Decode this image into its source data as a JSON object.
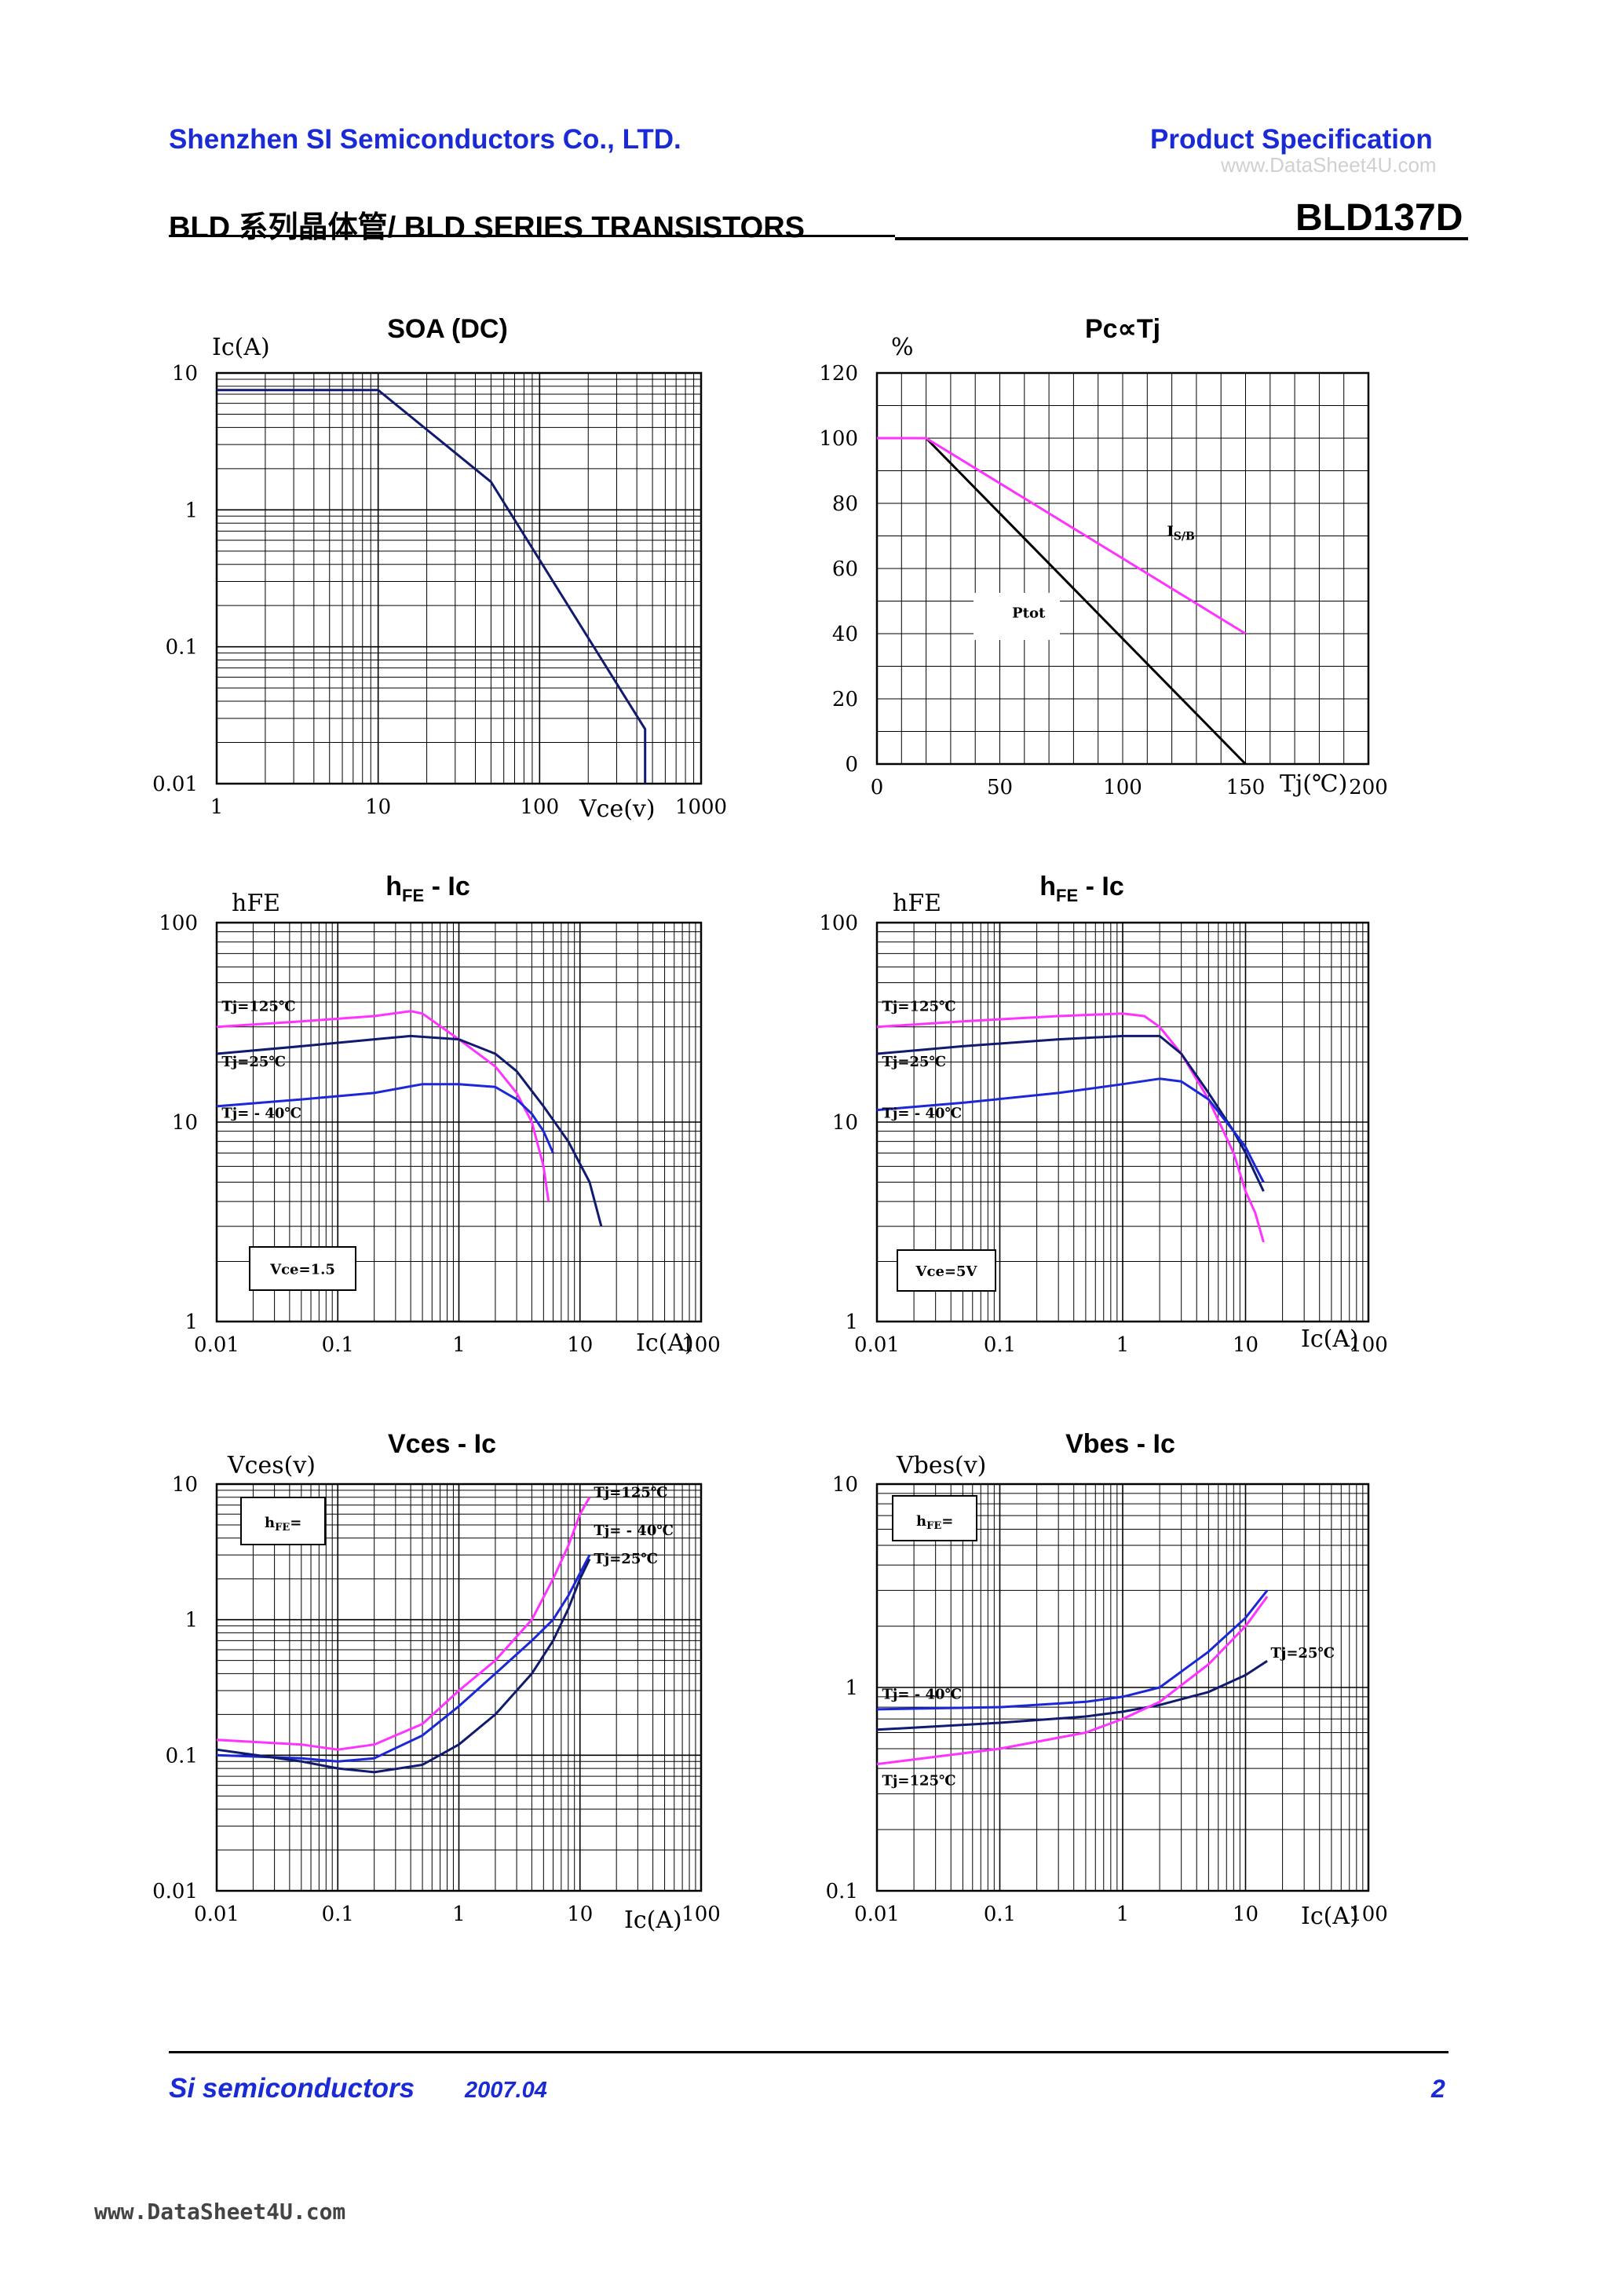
{
  "header": {
    "company": "Shenzhen SI Semiconductors Co., LTD.",
    "spec": "Product Specification",
    "watermark": "www.DataSheet4U.com",
    "series": "BLD 系列晶体管/ BLD SERIES TRANSISTORS",
    "part": "BLD137D"
  },
  "footer": {
    "company": "Si semiconductors",
    "date": "2007.04",
    "page": "2",
    "website": "www.DataSheet4U.com"
  },
  "colors": {
    "magenta": "#ff33ff",
    "navy": "#101a6e",
    "blue": "#1c28d8",
    "black": "#000000",
    "header_blue": "#1a2bd6"
  },
  "chart_data": [
    {
      "id": "soa",
      "type": "line",
      "title": "SOA (DC)",
      "xlabel": "Vce(v)",
      "ylabel": "Ic(A)",
      "xscale": "log",
      "yscale": "log",
      "xlim": [
        1,
        1000
      ],
      "ylim": [
        0.01,
        10
      ],
      "xticks": [
        1,
        10,
        100,
        1000
      ],
      "xtick_labels": [
        "1",
        "10",
        "100",
        "1000"
      ],
      "yticks": [
        0.01,
        0.1,
        1,
        10
      ],
      "ytick_labels": [
        "0.01",
        "0.1",
        "1",
        "10"
      ],
      "series": [
        {
          "name": "SOA",
          "color": "navy",
          "x": [
            1,
            10,
            50,
            450,
            450
          ],
          "y": [
            7.5,
            7.5,
            1.6,
            0.025,
            0.01
          ]
        }
      ]
    },
    {
      "id": "pc_tj",
      "type": "line",
      "title": "Pc∝Tj",
      "xlabel": "Tj(℃)",
      "ylabel": "%",
      "xscale": "linear",
      "yscale": "linear",
      "xlim": [
        0,
        200
      ],
      "ylim": [
        0,
        120
      ],
      "xticks": [
        0,
        50,
        100,
        150,
        200
      ],
      "xtick_labels": [
        "0",
        "50",
        "100",
        "150",
        "200"
      ],
      "yticks": [
        0,
        20,
        40,
        60,
        80,
        100,
        120
      ],
      "ytick_labels": [
        "0",
        "20",
        "40",
        "60",
        "80",
        "100",
        "120"
      ],
      "series": [
        {
          "name": "Ptot",
          "color": "black",
          "x": [
            0,
            20,
            150
          ],
          "y": [
            100,
            100,
            0
          ]
        },
        {
          "name": "Is/b",
          "color": "magenta",
          "x": [
            0,
            20,
            150
          ],
          "y": [
            100,
            100,
            40
          ]
        }
      ],
      "annotations": [
        {
          "text": "Is/b",
          "main": "I",
          "sub": "S/B",
          "x": 118,
          "y": 70
        },
        {
          "text": "Ptot",
          "x": 55,
          "y": 45
        }
      ]
    },
    {
      "id": "hfe_ic_1",
      "type": "line",
      "title": "hFE - Ic",
      "xlabel": "Ic(A)",
      "ylabel": "hFE",
      "xscale": "log",
      "yscale": "log",
      "xlim": [
        0.01,
        100
      ],
      "ylim": [
        1,
        100
      ],
      "xticks": [
        0.01,
        0.1,
        1,
        10,
        100
      ],
      "xtick_labels": [
        "0.01",
        "0.1",
        "1",
        "10",
        "100"
      ],
      "yticks": [
        1,
        10,
        100
      ],
      "ytick_labels": [
        "1",
        "10",
        "100"
      ],
      "series": [
        {
          "name": "Tj=125℃",
          "color": "magenta",
          "x": [
            0.01,
            0.05,
            0.2,
            0.4,
            0.5,
            1,
            2,
            3,
            4,
            5,
            5.5
          ],
          "y": [
            30,
            32,
            34,
            36,
            35,
            26,
            19,
            14,
            10,
            6,
            4
          ]
        },
        {
          "name": "Tj=25℃",
          "color": "navy",
          "x": [
            0.01,
            0.05,
            0.2,
            0.4,
            1,
            2,
            3,
            5,
            8,
            12,
            15
          ],
          "y": [
            22,
            24,
            26,
            27,
            26,
            22,
            18,
            12,
            8,
            5,
            3
          ]
        },
        {
          "name": "Tj=-40℃",
          "color": "blue",
          "x": [
            0.01,
            0.05,
            0.2,
            0.5,
            1,
            2,
            3,
            4,
            5,
            6
          ],
          "y": [
            12,
            13,
            14,
            15.5,
            15.5,
            15,
            13,
            11,
            9,
            7
          ]
        }
      ],
      "annotations": [
        {
          "text": "Tj=125℃",
          "x": 0.011,
          "y": 36
        },
        {
          "text": "Tj=25℃",
          "x": 0.011,
          "y": 19
        },
        {
          "text": "Tj= - 40℃",
          "x": 0.011,
          "y": 10.5
        }
      ],
      "condition": "Vce=1.5"
    },
    {
      "id": "hfe_ic_2",
      "type": "line",
      "title": "hFE - Ic",
      "xlabel": "Ic(A)",
      "ylabel": "hFE",
      "xscale": "log",
      "yscale": "log",
      "xlim": [
        0.01,
        100
      ],
      "ylim": [
        1,
        100
      ],
      "xticks": [
        0.01,
        0.1,
        1,
        10,
        100
      ],
      "xtick_labels": [
        "0.01",
        "0.1",
        "1",
        "10",
        "100"
      ],
      "yticks": [
        1,
        10,
        100
      ],
      "ytick_labels": [
        "1",
        "10",
        "100"
      ],
      "series": [
        {
          "name": "Tj=125℃",
          "color": "magenta",
          "x": [
            0.01,
            0.05,
            0.3,
            1,
            1.5,
            2,
            3,
            5,
            8,
            10,
            12,
            14
          ],
          "y": [
            30,
            32,
            34,
            35,
            34,
            30,
            22,
            13,
            7,
            4.5,
            3.5,
            2.5
          ]
        },
        {
          "name": "Tj=25℃",
          "color": "navy",
          "x": [
            0.01,
            0.05,
            0.3,
            1,
            2,
            3,
            5,
            8,
            10,
            12,
            14
          ],
          "y": [
            22,
            24,
            26,
            27,
            27,
            22,
            14,
            9,
            7,
            5.5,
            4.5
          ]
        },
        {
          "name": "Tj=-40℃",
          "color": "blue",
          "x": [
            0.01,
            0.05,
            0.3,
            1,
            2,
            3,
            5,
            8,
            10,
            12,
            14
          ],
          "y": [
            11.5,
            12.5,
            14,
            15.5,
            16.5,
            16,
            13,
            9,
            7.5,
            6,
            5
          ]
        }
      ],
      "annotations": [
        {
          "text": "Tj=125℃",
          "x": 0.011,
          "y": 36
        },
        {
          "text": "Tj=25℃",
          "x": 0.011,
          "y": 19
        },
        {
          "text": "Tj= - 40℃",
          "x": 0.011,
          "y": 10.5
        }
      ],
      "condition": "Vce=5V"
    },
    {
      "id": "vces_ic",
      "type": "line",
      "title": "Vces - Ic",
      "xlabel": "Ic(A)",
      "ylabel": "Vces(v)",
      "xscale": "log",
      "yscale": "log",
      "xlim": [
        0.01,
        100
      ],
      "ylim": [
        0.01,
        10
      ],
      "xticks": [
        0.01,
        0.1,
        1,
        10,
        100
      ],
      "xtick_labels": [
        "0.01",
        "0.1",
        "1",
        "10",
        "100"
      ],
      "yticks": [
        0.01,
        0.1,
        1,
        10
      ],
      "ytick_labels": [
        "0.01",
        "0.1",
        "1",
        "10"
      ],
      "series": [
        {
          "name": "Tj=125℃",
          "color": "magenta",
          "x": [
            0.01,
            0.05,
            0.1,
            0.2,
            0.5,
            1,
            2,
            4,
            6,
            8,
            10,
            12
          ],
          "y": [
            0.13,
            0.12,
            0.11,
            0.12,
            0.17,
            0.3,
            0.5,
            1,
            2,
            3.5,
            6,
            8
          ]
        },
        {
          "name": "Tj=-40℃",
          "color": "blue",
          "x": [
            0.01,
            0.05,
            0.1,
            0.2,
            0.5,
            1,
            2,
            4,
            6,
            8,
            10,
            12
          ],
          "y": [
            0.1,
            0.095,
            0.09,
            0.095,
            0.14,
            0.23,
            0.4,
            0.7,
            1,
            1.5,
            2.2,
            3
          ]
        },
        {
          "name": "Tj=25℃",
          "color": "navy",
          "x": [
            0.01,
            0.05,
            0.1,
            0.2,
            0.5,
            1,
            2,
            4,
            6,
            8,
            10,
            12
          ],
          "y": [
            0.11,
            0.09,
            0.08,
            0.075,
            0.085,
            0.12,
            0.2,
            0.4,
            0.7,
            1.2,
            2,
            2.8
          ]
        }
      ],
      "annotations": [
        {
          "text": "Tj=125℃",
          "x": 13,
          "y": 8
        },
        {
          "text": "Tj= - 40℃",
          "x": 13,
          "y": 4.2
        },
        {
          "text": "Tj=25℃",
          "x": 13,
          "y": 2.6
        }
      ],
      "condition": "hFE="
    },
    {
      "id": "vbes_ic",
      "type": "line",
      "title": "Vbes - Ic",
      "xlabel": "Ic(A)",
      "ylabel": "Vbes(v)",
      "xscale": "log",
      "yscale": "log",
      "xlim": [
        0.01,
        100
      ],
      "ylim": [
        0.1,
        10
      ],
      "xticks": [
        0.01,
        0.1,
        1,
        10,
        100
      ],
      "xtick_labels": [
        "0.01",
        "0.1",
        "1",
        "10",
        "100"
      ],
      "yticks": [
        0.1,
        1,
        10
      ],
      "ytick_labels": [
        "0.1",
        "1",
        "10"
      ],
      "series": [
        {
          "name": "Tj=-40℃",
          "color": "blue",
          "x": [
            0.01,
            0.1,
            0.5,
            1,
            2,
            5,
            10,
            15
          ],
          "y": [
            0.78,
            0.8,
            0.85,
            0.9,
            1,
            1.5,
            2.2,
            3
          ]
        },
        {
          "name": "Tj=25℃",
          "color": "navy",
          "x": [
            0.01,
            0.1,
            0.5,
            1,
            2,
            5,
            10,
            15
          ],
          "y": [
            0.62,
            0.67,
            0.72,
            0.76,
            0.82,
            0.95,
            1.15,
            1.35
          ]
        },
        {
          "name": "Tj=125℃",
          "color": "magenta",
          "x": [
            0.01,
            0.1,
            0.5,
            1,
            2,
            5,
            10,
            15
          ],
          "y": [
            0.42,
            0.5,
            0.6,
            0.7,
            0.85,
            1.3,
            2,
            2.8
          ]
        }
      ],
      "annotations": [
        {
          "text": "Tj= - 40℃",
          "x": 0.011,
          "y": 0.88
        },
        {
          "text": "Tj=25℃",
          "x": 16,
          "y": 1.4
        },
        {
          "text": "Tj=125℃",
          "x": 0.011,
          "y": 0.33
        }
      ],
      "condition": "hFE="
    }
  ]
}
